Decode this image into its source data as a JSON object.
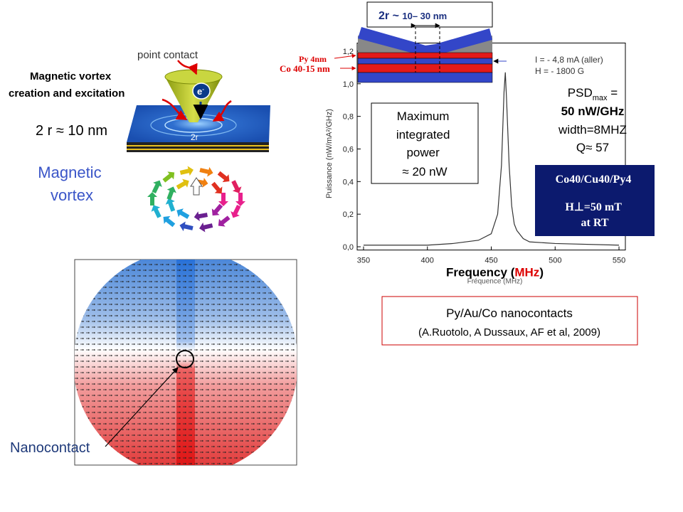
{
  "slide": {
    "point_contact": "point contact",
    "vortex_creation": [
      "Magnetic vortex",
      "creation and excitation"
    ],
    "electron": "e",
    "electron_sup": "-",
    "radius_small": "2r",
    "radius_note": "2 r ≈ 10 nm",
    "vortex_label": [
      "Magnetic",
      "vortex"
    ],
    "nanocontact": "Nanocontact",
    "gap_label": [
      "2r ~ ",
      "10– 30 nm"
    ],
    "layer_py": "Py 4nm",
    "layer_co": "Co 40-15 nm",
    "current": "I = - 4,8 mA (aller)",
    "field": "H = - 1800 G",
    "psd": [
      "PSD",
      "max",
      " ="
    ],
    "psd_value": "50 nW/GHz",
    "width": "width=8MHZ",
    "q": "Q≈ 57",
    "power_box": [
      "Maximum",
      "integrated",
      "power",
      "≈ 20 nW"
    ],
    "stack_box": [
      "Co40/Cu40/Py4",
      "H⊥=50 mT",
      "at RT"
    ],
    "reference": [
      "Py/Au/Co nanocontacts",
      "(A.Ruotolo, A Dussaux, AF et al, 2009)"
    ]
  },
  "chart_data": {
    "type": "line",
    "xlabel": [
      "Frequency (",
      "MHz",
      ")"
    ],
    "xlabel_small": "Fréquence (MHz)",
    "ylabel": "Puissance (nW/mA²/GHz)",
    "x": [
      350,
      400,
      420,
      440,
      450,
      455,
      458,
      460,
      461,
      462,
      464,
      466,
      468,
      470,
      472,
      475,
      480,
      500,
      550
    ],
    "values": [
      0.01,
      0.01,
      0.02,
      0.04,
      0.08,
      0.2,
      0.5,
      0.95,
      1.07,
      0.9,
      0.5,
      0.25,
      0.14,
      0.1,
      0.08,
      0.05,
      0.03,
      0.02,
      0.01
    ],
    "color": "#333333",
    "xlim": [
      345,
      555
    ],
    "ylim": [
      -0.02,
      1.25
    ],
    "xticks": [
      350,
      400,
      450,
      500,
      550
    ],
    "yticks": [
      {
        "value": 0,
        "label": "0,0"
      },
      {
        "value": 0.2,
        "label": "0,2"
      },
      {
        "value": 0.4,
        "label": "0,4"
      },
      {
        "value": 0.6,
        "label": "0,6"
      },
      {
        "value": 0.8,
        "label": "0,8"
      },
      {
        "value": 1.0,
        "label": "1,0"
      },
      {
        "value": 1.2,
        "label": "1,2"
      }
    ]
  }
}
